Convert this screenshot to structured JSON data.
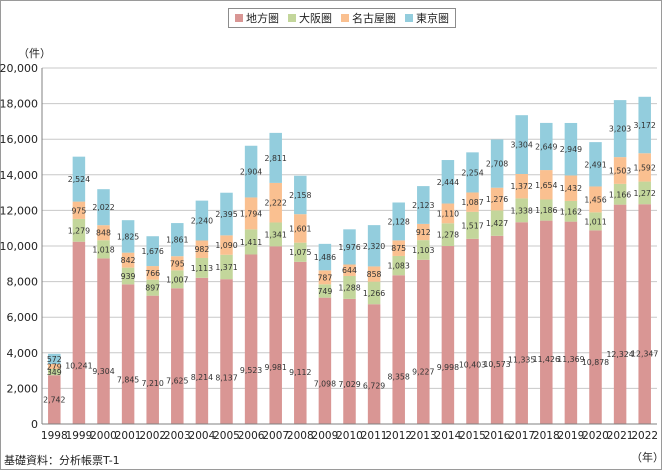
{
  "chart_data": {
    "type": "bar",
    "stacked": true,
    "categories": [
      "1998",
      "1999",
      "2000",
      "2001",
      "2002",
      "2003",
      "2004",
      "2005",
      "2006",
      "2007",
      "2008",
      "2009",
      "2010",
      "2011",
      "2012",
      "2013",
      "2014",
      "2015",
      "2016",
      "2017",
      "2018",
      "2019",
      "2020",
      "2021",
      "2022"
    ],
    "series": [
      {
        "name": "地方圏",
        "color": "#d99694",
        "values": [
          2742,
          10241,
          9304,
          7845,
          7210,
          7625,
          8214,
          8137,
          9523,
          9981,
          9112,
          7098,
          7029,
          6729,
          8358,
          9227,
          9998,
          10403,
          10573,
          11335,
          11426,
          11369,
          10878,
          12324,
          12347
        ]
      },
      {
        "name": "大阪圏",
        "color": "#c3d69b",
        "values": [
          349,
          1279,
          1018,
          939,
          897,
          1007,
          1113,
          1371,
          1411,
          1341,
          1075,
          749,
          1288,
          1266,
          1083,
          1103,
          1278,
          1517,
          1427,
          1338,
          1186,
          1162,
          1011,
          1166,
          1272
        ]
      },
      {
        "name": "名古屋圏",
        "color": "#fac090",
        "values": [
          279,
          975,
          848,
          842,
          766,
          795,
          982,
          1090,
          1794,
          2222,
          1601,
          787,
          644,
          858,
          875,
          912,
          1110,
          1087,
          1276,
          1372,
          1654,
          1432,
          1456,
          1503,
          1592
        ]
      },
      {
        "name": "東京圏",
        "color": "#93cddd",
        "values": [
          572,
          2524,
          2022,
          1825,
          1676,
          1861,
          2240,
          2395,
          2904,
          2811,
          2158,
          1486,
          1976,
          2320,
          2128,
          2123,
          2444,
          2254,
          2708,
          3304,
          2649,
          2949,
          2491,
          3203,
          3172
        ]
      }
    ],
    "yticks": [
      "0",
      "2,000",
      "4,000",
      "6,000",
      "8,000",
      "10,000",
      "12,000",
      "14,000",
      "16,000",
      "18,000",
      "20,000"
    ],
    "ylim": [
      0,
      20000
    ],
    "grid": true,
    "legend_position": "top-center",
    "y_unit": "（件）",
    "x_unit": "（年）"
  },
  "source_note": "基礎資料：分析帳票T-1"
}
